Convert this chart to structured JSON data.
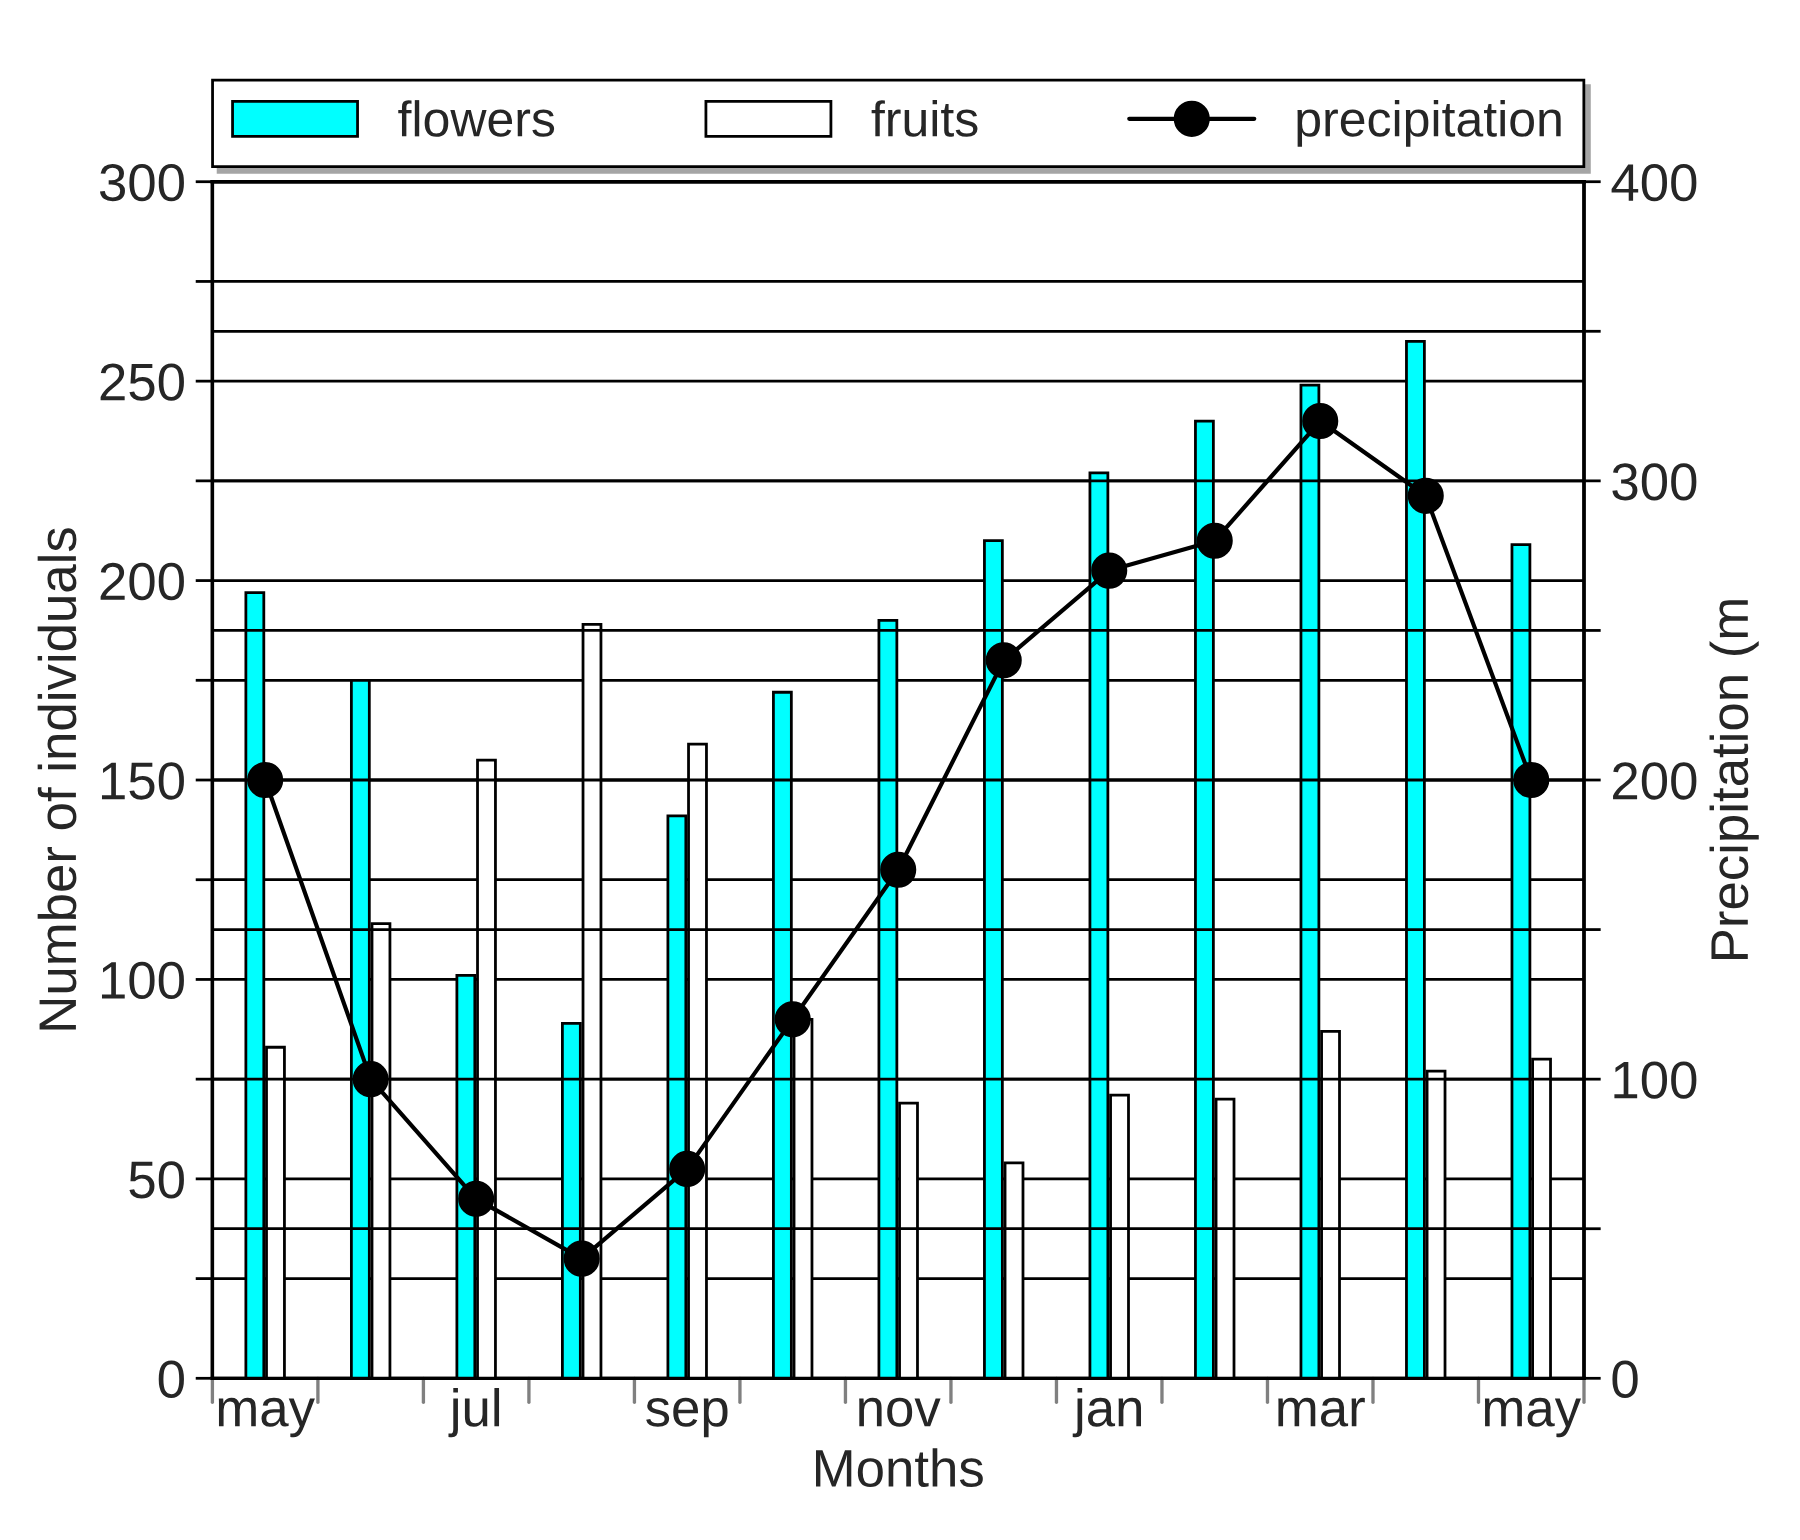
{
  "chart_data": {
    "type": "bar",
    "xlabel": "Months",
    "ylabel": "Number of individuals",
    "y2label": "Precipitation (m",
    "categories": [
      "may",
      null,
      "jul",
      null,
      "sep",
      null,
      "nov",
      null,
      "jan",
      null,
      "mar",
      null,
      "may"
    ],
    "series": [
      {
        "name": "flowers",
        "color": "#00ffff",
        "values": [
          197,
          175,
          101,
          89,
          141,
          172,
          190,
          210,
          227,
          240,
          249,
          260,
          209
        ]
      },
      {
        "name": "fruits",
        "color": "#ffffff",
        "values": [
          83,
          114,
          155,
          189,
          159,
          90,
          69,
          54,
          71,
          70,
          87,
          77,
          80
        ]
      },
      {
        "name": "precipitation",
        "type": "line",
        "axis": "y2",
        "color": "#000000",
        "marker": "circle",
        "line_style": "solid",
        "values": [
          200,
          100,
          60,
          40,
          70,
          120,
          170,
          240,
          270,
          280,
          320,
          295,
          200
        ]
      }
    ],
    "ylim": [
      0,
      300
    ],
    "yticks": [
      0,
      {
        "value": 25,
        "label": null
      },
      50,
      {
        "value": 75,
        "label": null
      },
      100,
      {
        "value": 125,
        "label": null
      },
      150,
      {
        "value": 175,
        "label": null
      },
      200,
      {
        "value": 225,
        "label": null
      },
      250,
      {
        "value": 275,
        "label": null
      },
      300
    ],
    "y2lim": [
      0,
      400
    ],
    "y2ticks": [
      0,
      {
        "value": 50,
        "label": null
      },
      100,
      {
        "value": 150,
        "label": null
      },
      200,
      {
        "value": 250,
        "label": null
      },
      300,
      {
        "value": 350,
        "label": null
      },
      400
    ],
    "grid": "y",
    "legend": "top"
  }
}
